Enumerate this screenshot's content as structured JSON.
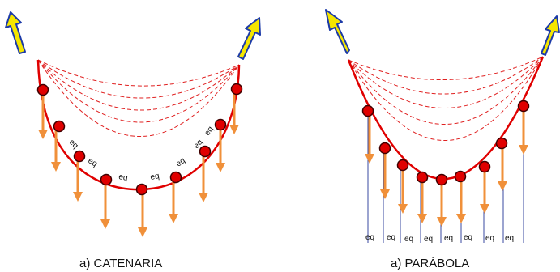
{
  "colors": {
    "curve": "#e00000",
    "dashed": "#e02020",
    "node_fill": "#e00000",
    "node_stroke": "#400000",
    "force_arrow": "#f0903a",
    "tension_arrow_fill": "#f5e600",
    "tension_arrow_stroke": "#1c3aa8",
    "segment_line": "#3a4aa0",
    "text": "#111111"
  },
  "icons": [
    "tension-arrow-icon",
    "load-arrow-icon",
    "node-dot-icon"
  ],
  "catenaria": {
    "caption": "a) CATENARIA",
    "segment_label": "eq",
    "segment_label_count": 7
  },
  "parabola": {
    "caption": "a) PARÁBOLA",
    "segment_label": "eq",
    "segment_label_count": 8
  }
}
